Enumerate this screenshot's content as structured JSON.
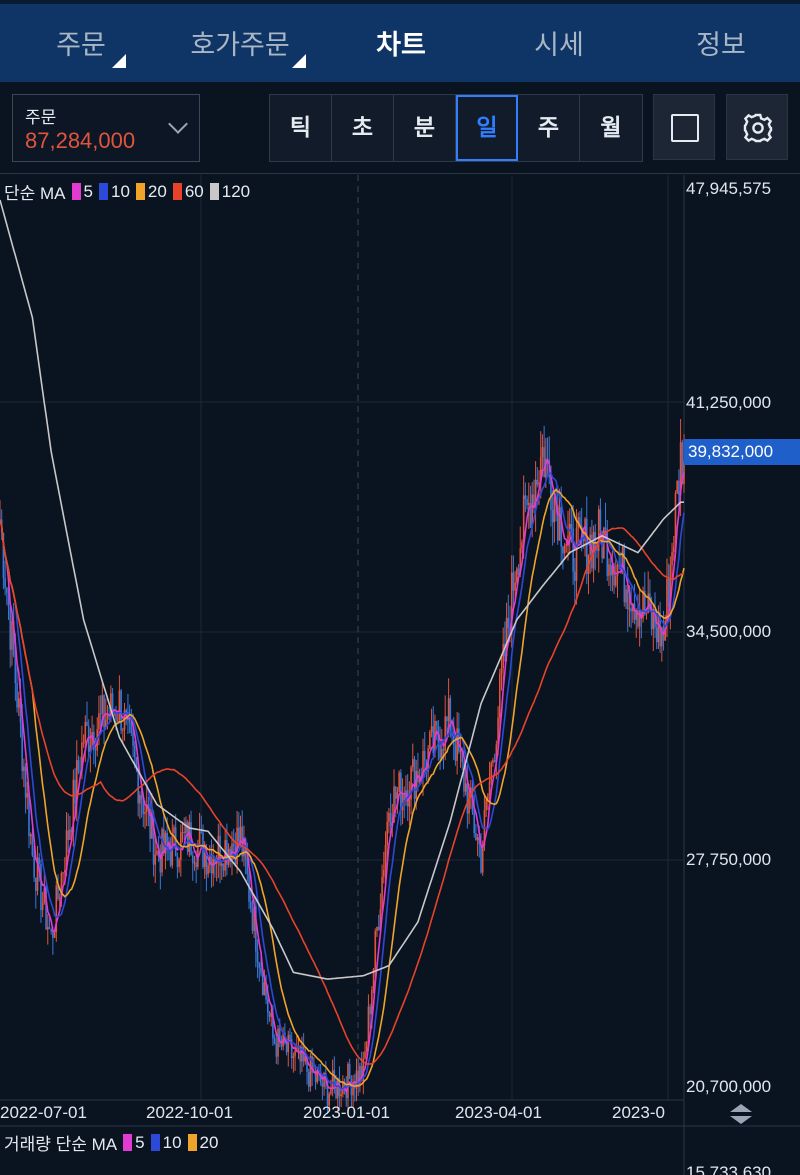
{
  "tabs": [
    {
      "label": "주문",
      "active": false,
      "dropdown": true
    },
    {
      "label": "호가주문",
      "active": false,
      "dropdown": true
    },
    {
      "label": "차트",
      "active": true,
      "dropdown": false
    },
    {
      "label": "시세",
      "active": false,
      "dropdown": false
    },
    {
      "label": "정보",
      "active": false,
      "dropdown": false
    }
  ],
  "order": {
    "label": "주문",
    "value": "87,284,000"
  },
  "periods": [
    "틱",
    "초",
    "분",
    "일",
    "주",
    "월"
  ],
  "active_period": "일",
  "icons": {
    "square": "square-icon",
    "settings": "gear-icon",
    "scroll": "up-down-arrows-icon"
  },
  "colors": {
    "ma5": "#e23bd1",
    "ma10": "#2c49d8",
    "ma20": "#f0a52a",
    "ma60": "#e8432a",
    "ma120": "#c8c8c8",
    "accent": "#2f7fff"
  },
  "legend": {
    "prefix": "단순 MA",
    "items": [
      {
        "value": "5",
        "color": "#e23bd1"
      },
      {
        "value": "10",
        "color": "#2c49d8"
      },
      {
        "value": "20",
        "color": "#f0a52a"
      },
      {
        "value": "60",
        "color": "#e8432a"
      },
      {
        "value": "120",
        "color": "#c8c8c8"
      }
    ]
  },
  "volume_legend": {
    "prefix": "거래량 단순 MA",
    "items": [
      {
        "value": "5",
        "color": "#e23bd1"
      },
      {
        "value": "10",
        "color": "#2c49d8"
      },
      {
        "value": "20",
        "color": "#f0a52a"
      }
    ]
  },
  "price_axis": [
    "47,945,575",
    "41,250,000",
    "34,500,000",
    "27,750,000",
    "20,700,000"
  ],
  "current_price": "39,832,000",
  "date_axis": [
    "2022-07-01",
    "2022-10-01",
    "2023-01-01",
    "2023-04-01",
    "2023-0"
  ],
  "volume_axis_top": "15,733,630",
  "chart_data": {
    "type": "candlestick",
    "ylim": [
      20700000,
      47945575
    ],
    "x": [
      "2022-06-01",
      "2022-06-20",
      "2022-07-01",
      "2022-07-20",
      "2022-08-10",
      "2022-09-01",
      "2022-09-20",
      "2022-10-01",
      "2022-10-20",
      "2022-11-08",
      "2022-11-20",
      "2022-12-10",
      "2022-12-31",
      "2023-01-15",
      "2023-02-01",
      "2023-02-20",
      "2023-03-10",
      "2023-03-31",
      "2023-04-15",
      "2023-05-01",
      "2023-05-20",
      "2023-06-10",
      "2023-06-25",
      "2023-07-05"
    ],
    "close": [
      38000000,
      28000000,
      25500000,
      31500000,
      32500000,
      28000000,
      28500000,
      28000000,
      28500000,
      22500000,
      22000000,
      21000000,
      21500000,
      29500000,
      30500000,
      32000000,
      28000000,
      37000000,
      40000000,
      37000000,
      37500000,
      35500000,
      34500000,
      39832000
    ],
    "ma120": [
      47500000,
      44000000,
      40000000,
      35000000,
      31500000,
      29500000,
      28800000,
      28700000,
      27500000,
      25800000,
      24500000,
      24300000,
      24400000,
      24700000,
      26000000,
      29000000,
      32500000,
      35000000,
      36000000,
      37000000,
      37500000,
      37000000,
      38000000,
      38500000
    ]
  }
}
